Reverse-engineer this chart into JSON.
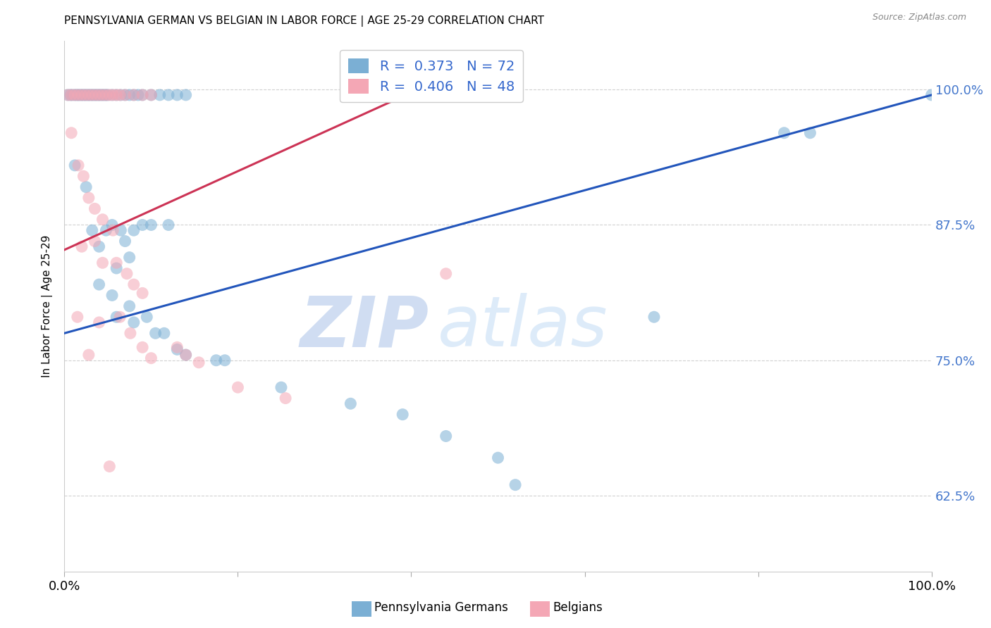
{
  "title": "PENNSYLVANIA GERMAN VS BELGIAN IN LABOR FORCE | AGE 25-29 CORRELATION CHART",
  "source": "Source: ZipAtlas.com",
  "ylabel": "In Labor Force | Age 25-29",
  "ytick_labels": [
    "62.5%",
    "75.0%",
    "87.5%",
    "100.0%"
  ],
  "ytick_values": [
    0.625,
    0.75,
    0.875,
    1.0
  ],
  "xlim": [
    0.0,
    1.0
  ],
  "ylim": [
    0.555,
    1.045
  ],
  "blue_R": "0.373",
  "blue_N": "72",
  "pink_R": "0.406",
  "pink_N": "48",
  "blue_color": "#7BAFD4",
  "pink_color": "#F4A7B5",
  "blue_line_color": "#2255BB",
  "pink_line_color": "#CC3355",
  "legend_label_blue": "Pennsylvania Germans",
  "legend_label_pink": "Belgians",
  "watermark_zip": "ZIP",
  "watermark_atlas": "atlas",
  "blue_points": [
    [
      0.004,
      0.995
    ],
    [
      0.007,
      0.995
    ],
    [
      0.009,
      0.995
    ],
    [
      0.012,
      0.995
    ],
    [
      0.014,
      0.995
    ],
    [
      0.016,
      0.995
    ],
    [
      0.018,
      0.995
    ],
    [
      0.02,
      0.995
    ],
    [
      0.022,
      0.995
    ],
    [
      0.024,
      0.995
    ],
    [
      0.026,
      0.995
    ],
    [
      0.028,
      0.995
    ],
    [
      0.03,
      0.995
    ],
    [
      0.032,
      0.995
    ],
    [
      0.034,
      0.995
    ],
    [
      0.036,
      0.995
    ],
    [
      0.038,
      0.995
    ],
    [
      0.04,
      0.995
    ],
    [
      0.042,
      0.995
    ],
    [
      0.044,
      0.995
    ],
    [
      0.046,
      0.995
    ],
    [
      0.048,
      0.995
    ],
    [
      0.05,
      0.995
    ],
    [
      0.055,
      0.995
    ],
    [
      0.06,
      0.995
    ],
    [
      0.065,
      0.995
    ],
    [
      0.07,
      0.995
    ],
    [
      0.075,
      0.995
    ],
    [
      0.08,
      0.995
    ],
    [
      0.085,
      0.995
    ],
    [
      0.09,
      0.995
    ],
    [
      0.1,
      0.995
    ],
    [
      0.11,
      0.995
    ],
    [
      0.12,
      0.995
    ],
    [
      0.13,
      0.995
    ],
    [
      0.14,
      0.995
    ],
    [
      0.012,
      0.93
    ],
    [
      0.025,
      0.91
    ],
    [
      0.032,
      0.87
    ],
    [
      0.04,
      0.855
    ],
    [
      0.048,
      0.87
    ],
    [
      0.055,
      0.875
    ],
    [
      0.065,
      0.87
    ],
    [
      0.07,
      0.86
    ],
    [
      0.06,
      0.835
    ],
    [
      0.075,
      0.845
    ],
    [
      0.08,
      0.87
    ],
    [
      0.09,
      0.875
    ],
    [
      0.1,
      0.875
    ],
    [
      0.12,
      0.875
    ],
    [
      0.04,
      0.82
    ],
    [
      0.055,
      0.81
    ],
    [
      0.06,
      0.79
    ],
    [
      0.075,
      0.8
    ],
    [
      0.08,
      0.785
    ],
    [
      0.095,
      0.79
    ],
    [
      0.105,
      0.775
    ],
    [
      0.115,
      0.775
    ],
    [
      0.13,
      0.76
    ],
    [
      0.14,
      0.755
    ],
    [
      0.175,
      0.75
    ],
    [
      0.185,
      0.75
    ],
    [
      0.25,
      0.725
    ],
    [
      0.33,
      0.71
    ],
    [
      0.39,
      0.7
    ],
    [
      0.44,
      0.68
    ],
    [
      0.5,
      0.66
    ],
    [
      0.52,
      0.635
    ],
    [
      0.68,
      0.79
    ],
    [
      0.83,
      0.96
    ],
    [
      0.86,
      0.96
    ],
    [
      1.0,
      0.995
    ]
  ],
  "pink_points": [
    [
      0.004,
      0.995
    ],
    [
      0.008,
      0.995
    ],
    [
      0.012,
      0.995
    ],
    [
      0.016,
      0.995
    ],
    [
      0.02,
      0.995
    ],
    [
      0.024,
      0.995
    ],
    [
      0.028,
      0.995
    ],
    [
      0.032,
      0.995
    ],
    [
      0.036,
      0.995
    ],
    [
      0.04,
      0.995
    ],
    [
      0.044,
      0.995
    ],
    [
      0.048,
      0.995
    ],
    [
      0.052,
      0.995
    ],
    [
      0.056,
      0.995
    ],
    [
      0.06,
      0.995
    ],
    [
      0.064,
      0.995
    ],
    [
      0.07,
      0.995
    ],
    [
      0.08,
      0.995
    ],
    [
      0.09,
      0.995
    ],
    [
      0.1,
      0.995
    ],
    [
      0.008,
      0.96
    ],
    [
      0.016,
      0.93
    ],
    [
      0.022,
      0.92
    ],
    [
      0.028,
      0.9
    ],
    [
      0.035,
      0.89
    ],
    [
      0.044,
      0.88
    ],
    [
      0.056,
      0.87
    ],
    [
      0.02,
      0.855
    ],
    [
      0.035,
      0.86
    ],
    [
      0.044,
      0.84
    ],
    [
      0.06,
      0.84
    ],
    [
      0.072,
      0.83
    ],
    [
      0.08,
      0.82
    ],
    [
      0.09,
      0.812
    ],
    [
      0.015,
      0.79
    ],
    [
      0.04,
      0.785
    ],
    [
      0.064,
      0.79
    ],
    [
      0.076,
      0.775
    ],
    [
      0.09,
      0.762
    ],
    [
      0.1,
      0.752
    ],
    [
      0.13,
      0.762
    ],
    [
      0.14,
      0.755
    ],
    [
      0.028,
      0.755
    ],
    [
      0.155,
      0.748
    ],
    [
      0.44,
      0.83
    ],
    [
      0.052,
      0.652
    ],
    [
      0.2,
      0.725
    ],
    [
      0.255,
      0.715
    ]
  ],
  "blue_trend_x": [
    0.0,
    1.0
  ],
  "blue_trend_y": [
    0.775,
    0.995
  ],
  "pink_trend_x": [
    0.0,
    0.38
  ],
  "pink_trend_y": [
    0.852,
    0.99
  ]
}
